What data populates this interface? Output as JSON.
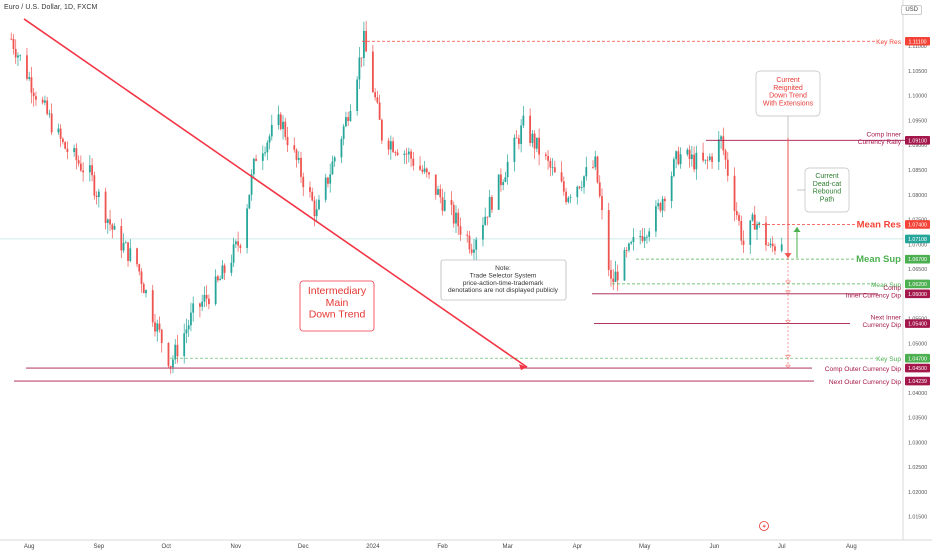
{
  "header": {
    "title": "Euro / U.S. Dollar, 1D, FXCM",
    "currency": "USD"
  },
  "colors": {
    "up": "#26a69a",
    "down": "#ef5350",
    "support": "#4caf50",
    "resistance": "#f44336",
    "zone": "#a4174a",
    "trend": "#f23645"
  },
  "chart_data": {
    "type": "candlestick",
    "instrument": "Euro / U.S. Dollar",
    "timeframe": "1D",
    "source": "FXCM",
    "ylim": [
      1.0115,
      1.1165
    ],
    "x_ticks": [
      "Aug",
      "Sep",
      "Oct",
      "Nov",
      "Dec",
      "2024",
      "Feb",
      "Mar",
      "Apr",
      "May",
      "Jun",
      "Jul",
      "Aug"
    ],
    "y_ticks": [
      1.015,
      1.02,
      1.025,
      1.03,
      1.035,
      1.04,
      1.045,
      1.05,
      1.055,
      1.06,
      1.065,
      1.07,
      1.075,
      1.08,
      1.085,
      1.09,
      1.095,
      1.1,
      1.105,
      1.11
    ],
    "y_tick_labels": [
      "1.01500",
      "1.02000",
      "1.02500",
      "1.03000",
      "1.03500",
      "1.04000",
      "1.04500",
      "1.05000",
      "1.05500",
      "1.06000",
      "1.06500",
      "1.07000",
      "1.07500",
      "1.08000",
      "1.08500",
      "1.09000",
      "1.09500",
      "1.10000",
      "1.10500",
      "1.11000"
    ],
    "price_path": [
      [
        "2023-07-24",
        1.1115
      ],
      [
        "2023-08-04",
        1.1005
      ],
      [
        "2023-08-16",
        1.09
      ],
      [
        "2023-08-28",
        1.084
      ],
      [
        "2023-09-08",
        1.072
      ],
      [
        "2023-09-18",
        1.066
      ],
      [
        "2023-09-27",
        1.053
      ],
      [
        "2023-10-03",
        1.046
      ],
      [
        "2023-10-13",
        1.056
      ],
      [
        "2023-10-24",
        1.062
      ],
      [
        "2023-11-03",
        1.071
      ],
      [
        "2023-11-10",
        1.088
      ],
      [
        "2023-11-21",
        1.095
      ],
      [
        "2023-12-07",
        1.076
      ],
      [
        "2023-12-20",
        1.095
      ],
      [
        "2023-12-28",
        1.111
      ],
      [
        "2024-01-05",
        1.092
      ],
      [
        "2024-01-17",
        1.088
      ],
      [
        "2024-01-26",
        1.083
      ],
      [
        "2024-02-05",
        1.076
      ],
      [
        "2024-02-14",
        1.07
      ],
      [
        "2024-02-26",
        1.082
      ],
      [
        "2024-03-08",
        1.094
      ],
      [
        "2024-03-19",
        1.086
      ],
      [
        "2024-03-27",
        1.08
      ],
      [
        "2024-04-09",
        1.086
      ],
      [
        "2024-04-16",
        1.062
      ],
      [
        "2024-04-26",
        1.07
      ],
      [
        "2024-05-06",
        1.076
      ],
      [
        "2024-05-16",
        1.088
      ],
      [
        "2024-05-28",
        1.086
      ],
      [
        "2024-06-04",
        1.091
      ],
      [
        "2024-06-14",
        1.07
      ],
      [
        "2024-06-19",
        1.075
      ],
      [
        "2024-06-26",
        1.069
      ],
      [
        "2024-07-01",
        1.071
      ]
    ],
    "last_price": 1.07108,
    "levels": [
      {
        "value": 1.111,
        "label": "Key Res",
        "price_label": "1.11100",
        "style": "dashed",
        "role": "resistance"
      },
      {
        "value": 1.091,
        "label": "Comp Inner\nCurrency Rally",
        "price_label": "1.09100",
        "style": "solid",
        "role": "zone"
      },
      {
        "value": 1.074,
        "label": "Mean Res",
        "price_label": "1.07400",
        "style": "dashed",
        "role": "resistance"
      },
      {
        "value": 1.067,
        "label": "Mean Sup",
        "price_label": "1.06700",
        "style": "dashed",
        "role": "support"
      },
      {
        "value": 1.062,
        "label": "Mean Sup",
        "price_label": "1.06200",
        "style": "dashed",
        "role": "support"
      },
      {
        "value": 1.06,
        "label": "Comp\nInner Currency Dip",
        "price_label": "1.06000",
        "style": "solid",
        "role": "zone"
      },
      {
        "value": 1.054,
        "label": "Next Inner\nCurrency Dip",
        "price_label": "1.05400",
        "style": "solid",
        "role": "zone"
      },
      {
        "value": 1.047,
        "label": "Key Sup",
        "price_label": "1.04700",
        "style": "dashed",
        "role": "support"
      },
      {
        "value": 1.045,
        "label": "Comp Outer Currency Dip",
        "price_label": "1.04500",
        "style": "solid",
        "role": "zone"
      },
      {
        "value": 1.04239,
        "label": "Next Outer Currency Dip",
        "price_label": "1.04239",
        "style": "solid",
        "role": "zone"
      }
    ],
    "annotations": {
      "trend_label": "Intermediary\nMain\nDown Trend",
      "note": "Note:\nTrade Selector System\nprice-action-time-trademark\ndenotations are not displayed publicly",
      "bearish_callout": "Current\nReignited\nDown Trend\nWith Extensions",
      "bullish_callout": "Current\nDead-cat\nRebound\nPath"
    }
  }
}
